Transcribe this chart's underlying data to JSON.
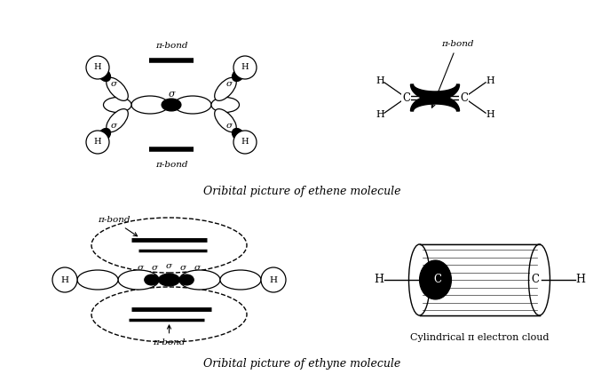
{
  "bg_color": "#ffffff",
  "title_ethene": "Oribital picture of ethene molecule",
  "title_ethyne": "Oribital picture of ethyne molecule",
  "cyl_label": "Cylindrical π electron cloud",
  "fig_width": 6.77,
  "fig_height": 4.3,
  "dpi": 100
}
